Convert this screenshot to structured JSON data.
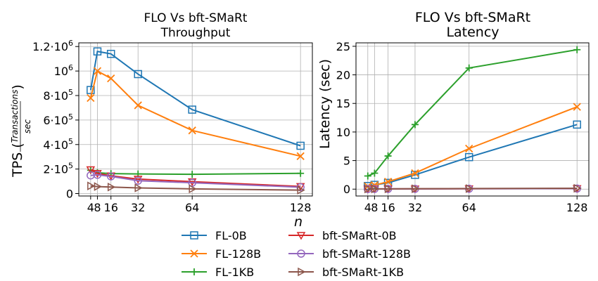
{
  "chart_data": [
    {
      "type": "line",
      "title": "FLO Vs bft-SMaRt",
      "subtitle": "Throughput",
      "xlabel": "",
      "ylabel_prefix": "TPS (",
      "ylabel_frac_num": "Transactions",
      "ylabel_frac_den": "sec",
      "ylabel_suffix": ")",
      "x_ticks": [
        4,
        8,
        16,
        32,
        64,
        128
      ],
      "x_tick_labels": [
        "4",
        "8",
        "16",
        "32",
        "64",
        "128"
      ],
      "y_ticks": [
        0,
        200000,
        400000,
        600000,
        800000,
        1000000,
        1200000
      ],
      "y_tick_labels": [
        {
          "base": "0",
          "exp": ""
        },
        {
          "base": "2·10",
          "exp": "5"
        },
        {
          "base": "4·10",
          "exp": "5"
        },
        {
          "base": "6·10",
          "exp": "5"
        },
        {
          "base": "8·10",
          "exp": "5"
        },
        {
          "base": "10",
          "exp": "6"
        },
        {
          "base": "1.2·10",
          "exp": "6"
        }
      ],
      "xlim": [
        -3,
        135
      ],
      "ylim": [
        -20000,
        1230000
      ],
      "grid": true,
      "series": [
        {
          "name": "FL-0B",
          "x": [
            4,
            8,
            16,
            32,
            64,
            128
          ],
          "values": [
            845000,
            1160000,
            1140000,
            975000,
            685000,
            390000
          ]
        },
        {
          "name": "FL-128B",
          "x": [
            4,
            8,
            16,
            32,
            64,
            128
          ],
          "values": [
            780000,
            1000000,
            940000,
            720000,
            515000,
            305000
          ]
        },
        {
          "name": "FL-1KB",
          "x": [
            4,
            8,
            16,
            32,
            64,
            128
          ],
          "values": [
            190000,
            170000,
            163000,
            160000,
            157000,
            165000
          ]
        },
        {
          "name": "bft-SMaRt-0B",
          "x": [
            4,
            8,
            16,
            32,
            64,
            128
          ],
          "values": [
            195000,
            165000,
            145000,
            118000,
            97000,
            58000
          ]
        },
        {
          "name": "bft-SMaRt-128B",
          "x": [
            4,
            8,
            16,
            32,
            64,
            128
          ],
          "values": [
            148000,
            153000,
            140000,
            105000,
            88000,
            52000
          ]
        },
        {
          "name": "bft-SMaRt-1KB",
          "x": [
            4,
            8,
            16,
            32,
            64,
            128
          ],
          "values": [
            62000,
            57000,
            53000,
            46000,
            38000,
            28000
          ]
        }
      ]
    },
    {
      "type": "line",
      "title": "FLO Vs bft-SMaRt",
      "subtitle": "Latency",
      "xlabel": "",
      "ylabel": "Latency (sec)",
      "x_ticks": [
        4,
        8,
        16,
        32,
        64,
        128
      ],
      "x_tick_labels": [
        "4",
        "8",
        "16",
        "32",
        "64",
        "128"
      ],
      "y_ticks": [
        0,
        5,
        10,
        15,
        20,
        25
      ],
      "y_tick_labels": [
        "0",
        "5",
        "10",
        "15",
        "20",
        "25"
      ],
      "xlim": [
        -3,
        135
      ],
      "ylim": [
        -1.2,
        25.6
      ],
      "grid": true,
      "series": [
        {
          "name": "FL-0B",
          "x": [
            4,
            8,
            16,
            32,
            64,
            128
          ],
          "values": [
            0.55,
            0.75,
            1.1,
            2.5,
            5.6,
            11.3
          ]
        },
        {
          "name": "FL-128B",
          "x": [
            4,
            8,
            16,
            32,
            64,
            128
          ],
          "values": [
            0.5,
            0.7,
            1.3,
            2.8,
            7.1,
            14.4
          ]
        },
        {
          "name": "FL-1KB",
          "x": [
            4,
            8,
            16,
            32,
            64,
            128
          ],
          "values": [
            2.3,
            2.8,
            5.8,
            11.3,
            21.2,
            24.4
          ]
        },
        {
          "name": "bft-SMaRt-0B",
          "x": [
            4,
            8,
            16,
            32,
            64,
            128
          ],
          "values": [
            0.02,
            0.03,
            0.04,
            0.05,
            0.07,
            0.1
          ]
        },
        {
          "name": "bft-SMaRt-128B",
          "x": [
            4,
            8,
            16,
            32,
            64,
            128
          ],
          "values": [
            0.02,
            0.03,
            0.04,
            0.05,
            0.07,
            0.1
          ]
        },
        {
          "name": "bft-SMaRt-1KB",
          "x": [
            4,
            8,
            16,
            32,
            64,
            128
          ],
          "values": [
            0.03,
            0.04,
            0.05,
            0.07,
            0.1,
            0.15
          ]
        }
      ]
    }
  ],
  "shared_xlabel": "n",
  "legend": {
    "placement": "bottom-center",
    "entries": [
      {
        "name": "FL-0B",
        "color": "#1f77b4",
        "marker": "square"
      },
      {
        "name": "FL-128B",
        "color": "#ff7f0e",
        "marker": "x"
      },
      {
        "name": "FL-1KB",
        "color": "#2ca02c",
        "marker": "plus"
      },
      {
        "name": "bft-SMaRt-0B",
        "color": "#d62728",
        "marker": "triangle-down"
      },
      {
        "name": "bft-SMaRt-128B",
        "color": "#9467bd",
        "marker": "circle"
      },
      {
        "name": "bft-SMaRt-1KB",
        "color": "#8c564b",
        "marker": "triangle-right"
      }
    ]
  }
}
